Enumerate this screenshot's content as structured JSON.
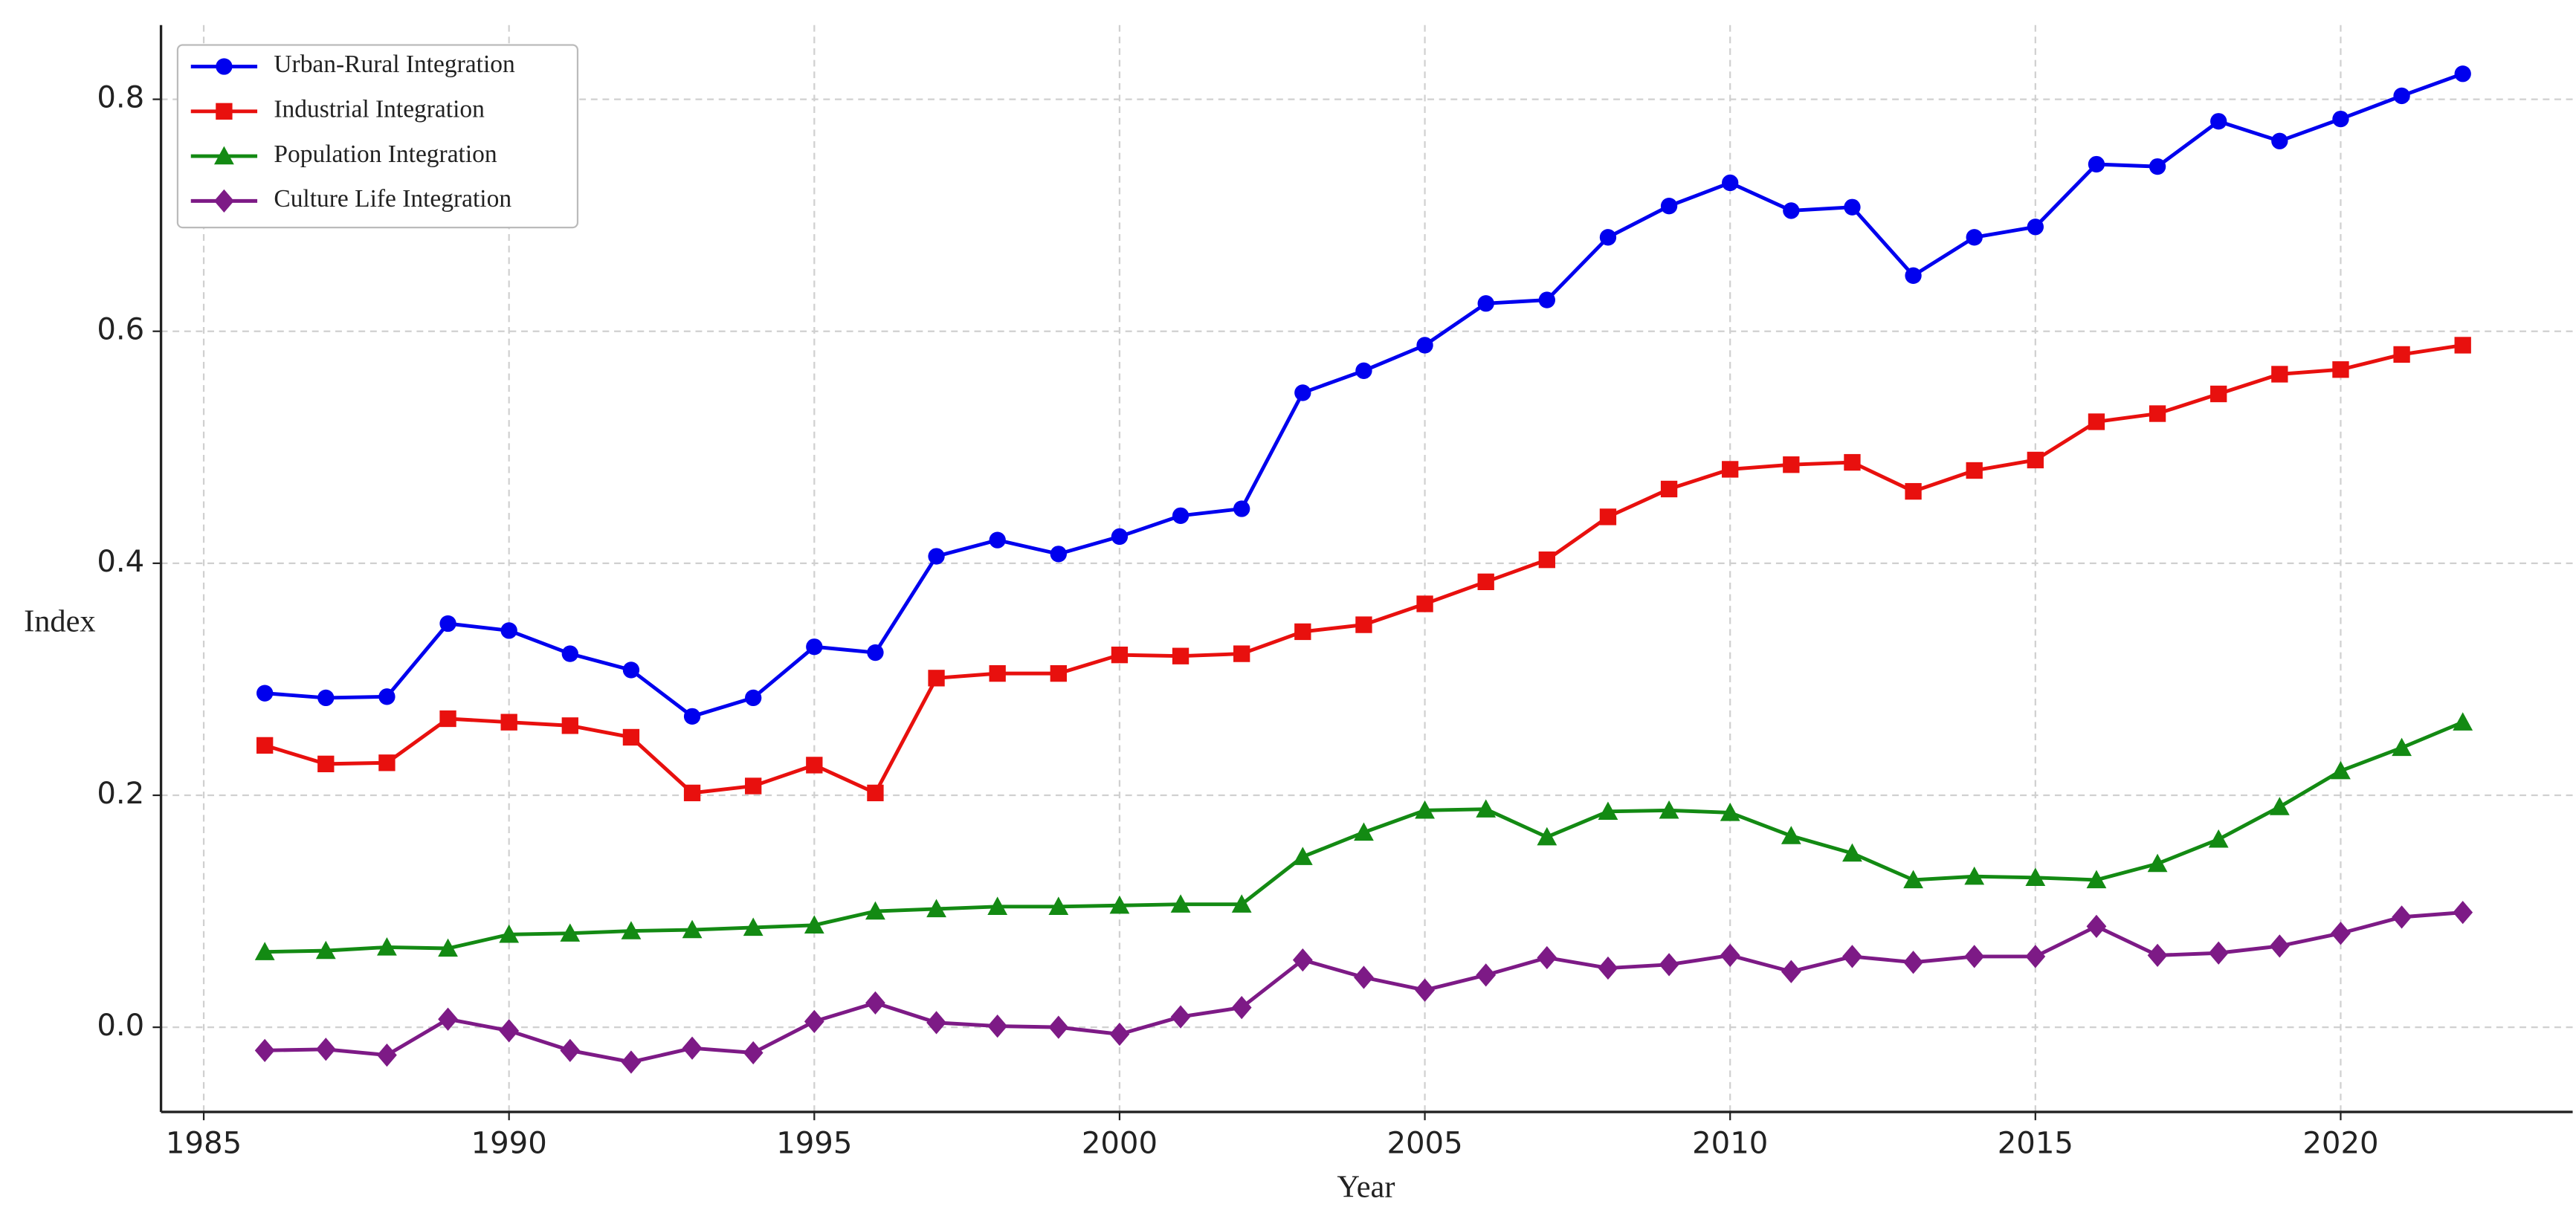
{
  "chart_data": {
    "type": "line",
    "x_label": "Year",
    "y_label": "Index",
    "x": [
      1986,
      1987,
      1988,
      1989,
      1990,
      1991,
      1992,
      1993,
      1994,
      1995,
      1996,
      1997,
      1998,
      1999,
      2000,
      2001,
      2002,
      2003,
      2004,
      2005,
      2006,
      2007,
      2008,
      2009,
      2010,
      2011,
      2012,
      2013,
      2014,
      2015,
      2016,
      2017,
      2018,
      2019,
      2020,
      2021,
      2022
    ],
    "series": [
      {
        "name": "Urban-Rural Integration",
        "color": "#0000ee",
        "marker": "circle",
        "values": [
          0.288,
          0.284,
          0.285,
          0.348,
          0.342,
          0.322,
          0.308,
          0.268,
          0.284,
          0.328,
          0.323,
          0.406,
          0.42,
          0.408,
          0.423,
          0.441,
          0.447,
          0.547,
          0.566,
          0.588,
          0.624,
          0.627,
          0.681,
          0.708,
          0.728,
          0.704,
          0.707,
          0.648,
          0.681,
          0.69,
          0.744,
          0.742,
          0.781,
          0.764,
          0.783,
          0.803,
          0.822
        ]
      },
      {
        "name": "Industrial Integration",
        "color": "#e8100e",
        "marker": "square",
        "values": [
          0.243,
          0.227,
          0.228,
          0.266,
          0.263,
          0.26,
          0.25,
          0.202,
          0.208,
          0.226,
          0.202,
          0.301,
          0.305,
          0.305,
          0.321,
          0.32,
          0.322,
          0.341,
          0.347,
          0.365,
          0.384,
          0.403,
          0.44,
          0.464,
          0.481,
          0.485,
          0.487,
          0.462,
          0.48,
          0.489,
          0.522,
          0.529,
          0.546,
          0.563,
          0.567,
          0.58,
          0.588
        ]
      },
      {
        "name": "Population Integration",
        "color": "#138a13",
        "marker": "triangle",
        "values": [
          0.065,
          0.066,
          0.069,
          0.068,
          0.08,
          0.081,
          0.083,
          0.084,
          0.086,
          0.088,
          0.1,
          0.102,
          0.104,
          0.104,
          0.105,
          0.106,
          0.106,
          0.147,
          0.168,
          0.187,
          0.188,
          0.164,
          0.186,
          0.187,
          0.185,
          0.165,
          0.15,
          0.127,
          0.13,
          0.129,
          0.127,
          0.141,
          0.162,
          0.19,
          0.221,
          0.241,
          0.263
        ]
      },
      {
        "name": "Culture Life Integration",
        "color": "#7d1a86",
        "marker": "diamond",
        "values": [
          -0.02,
          -0.019,
          -0.024,
          0.007,
          -0.003,
          -0.02,
          -0.03,
          -0.018,
          -0.022,
          0.005,
          0.021,
          0.004,
          0.001,
          0.0,
          -0.006,
          0.009,
          0.017,
          0.058,
          0.043,
          0.032,
          0.045,
          0.06,
          0.051,
          0.054,
          0.062,
          0.048,
          0.061,
          0.056,
          0.061,
          0.061,
          0.087,
          0.062,
          0.064,
          0.07,
          0.081,
          0.095,
          0.099
        ]
      }
    ],
    "xlim": [
      1984.3,
      2023.8
    ],
    "xticks": [
      1985,
      1990,
      1995,
      2000,
      2005,
      2010,
      2015,
      2020
    ],
    "ylim": [
      -0.073,
      0.864
    ],
    "yticks": [
      {
        "value": 0,
        "label": "0.0"
      },
      0.2,
      0.4,
      0.6,
      0.8
    ],
    "grid": true,
    "legend": "upper-left"
  }
}
